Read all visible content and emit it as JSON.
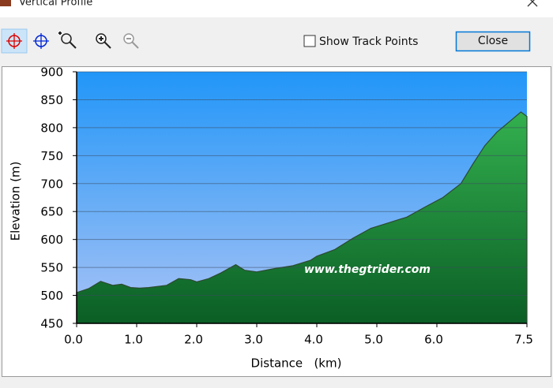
{
  "window": {
    "title": "Vertical Profile",
    "checkbox_label": "Show Track Points",
    "close_button": "Close"
  },
  "chart_data": {
    "type": "area",
    "xlabel": "Distance   (km)",
    "ylabel": "Elevation (m)",
    "annotation": "www.thegtrider.com",
    "x": [
      0,
      0.2,
      0.4,
      0.6,
      0.75,
      0.9,
      1.05,
      1.2,
      1.5,
      1.7,
      1.9,
      2.0,
      2.2,
      2.4,
      2.65,
      2.8,
      3.0,
      3.3,
      3.6,
      3.9,
      4.0,
      4.3,
      4.6,
      4.9,
      5.2,
      5.5,
      5.8,
      6.1,
      6.4,
      6.6,
      6.8,
      7.0,
      7.2,
      7.4,
      7.5
    ],
    "series": [
      {
        "name": "Elevation",
        "color": "#1e9a3e",
        "values": [
          505,
          512,
          525,
          518,
          520,
          514,
          513,
          514,
          518,
          530,
          528,
          524,
          530,
          540,
          555,
          545,
          542,
          548,
          553,
          563,
          570,
          582,
          602,
          620,
          630,
          640,
          658,
          675,
          700,
          735,
          768,
          792,
          810,
          828,
          820
        ]
      }
    ],
    "xlim": [
      0,
      7.5
    ],
    "ylim": [
      450,
      900
    ],
    "xticks": [
      {
        "value": 0,
        "label": "0.0"
      },
      {
        "value": 1,
        "label": "1.0"
      },
      {
        "value": 2,
        "label": "2.0"
      },
      {
        "value": 3,
        "label": "3.0"
      },
      {
        "value": 4,
        "label": "4.0"
      },
      {
        "value": 5,
        "label": "5.0"
      },
      {
        "value": 6,
        "label": "6.0"
      },
      {
        "value": 7.5,
        "label": "7.5"
      }
    ],
    "yticks": [
      450,
      500,
      550,
      600,
      650,
      700,
      750,
      800,
      850,
      900
    ],
    "grid": true
  }
}
